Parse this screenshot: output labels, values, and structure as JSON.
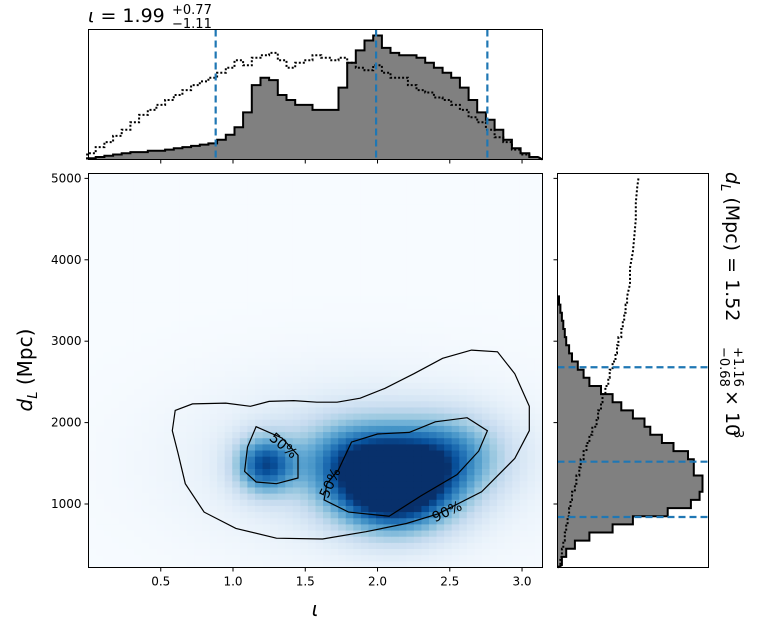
{
  "chart_data": [
    {
      "panel": "top-marginal",
      "type": "step-histogram",
      "title": {
        "symbol": "ι",
        "eq": " = 1.99",
        "sup": "+0.77",
        "sub": "−1.11"
      },
      "x": [
        0.02,
        0.08,
        0.14,
        0.2,
        0.26,
        0.32,
        0.38,
        0.44,
        0.5,
        0.56,
        0.62,
        0.68,
        0.74,
        0.8,
        0.86,
        0.92,
        0.98,
        1.04,
        1.1,
        1.16,
        1.22,
        1.28,
        1.34,
        1.4,
        1.46,
        1.52,
        1.58,
        1.64,
        1.7,
        1.76,
        1.82,
        1.88,
        1.94,
        2.0,
        2.06,
        2.12,
        2.18,
        2.24,
        2.3,
        2.36,
        2.42,
        2.48,
        2.54,
        2.6,
        2.66,
        2.72,
        2.78,
        2.84,
        2.9,
        2.96,
        3.02,
        3.08
      ],
      "series": [
        {
          "values": [
            0.01,
            0.02,
            0.03,
            0.04,
            0.05,
            0.06,
            0.06,
            0.07,
            0.07,
            0.08,
            0.09,
            0.1,
            0.11,
            0.12,
            0.13,
            0.16,
            0.2,
            0.26,
            0.38,
            0.6,
            0.66,
            0.64,
            0.52,
            0.48,
            0.44,
            0.44,
            0.4,
            0.4,
            0.4,
            0.58,
            0.78,
            0.88,
            0.96,
            1.0,
            0.9,
            0.86,
            0.84,
            0.84,
            0.82,
            0.78,
            0.74,
            0.7,
            0.66,
            0.58,
            0.48,
            0.38,
            0.32,
            0.24,
            0.16,
            0.09,
            0.05,
            0.02
          ],
          "fill": "#808080",
          "stroke": "#000000",
          "style": "solid"
        },
        {
          "values": [
            0.05,
            0.1,
            0.14,
            0.19,
            0.24,
            0.3,
            0.36,
            0.4,
            0.44,
            0.48,
            0.52,
            0.56,
            0.6,
            0.63,
            0.66,
            0.7,
            0.74,
            0.8,
            0.76,
            0.82,
            0.84,
            0.86,
            0.8,
            0.74,
            0.78,
            0.8,
            0.84,
            0.82,
            0.8,
            0.82,
            0.78,
            0.74,
            0.72,
            0.76,
            0.7,
            0.66,
            0.66,
            0.6,
            0.56,
            0.54,
            0.5,
            0.48,
            0.44,
            0.4,
            0.34,
            0.3,
            0.24,
            0.18,
            0.14,
            0.08,
            0.04,
            0.02
          ],
          "fill": "none",
          "stroke": "#000000",
          "style": "dotted"
        }
      ],
      "quantile_lines": [
        0.88,
        1.99,
        2.76
      ],
      "quantile_color": "#1f77b4",
      "xlim": [
        0.0,
        3.1416
      ]
    },
    {
      "panel": "joint",
      "type": "heatmap",
      "xlabel": "ι",
      "ylabel": "d_L (Mpc)",
      "xlim": [
        0.0,
        3.1416
      ],
      "ylim": [
        220,
        5060
      ],
      "xticks": [
        0.5,
        1.0,
        1.5,
        2.0,
        2.5,
        3.0
      ],
      "xtick_labels": [
        "0.5",
        "1.0",
        "1.5",
        "2.0",
        "2.5",
        "3.0"
      ],
      "yticks": [
        1000,
        2000,
        3000,
        4000,
        5000
      ],
      "ytick_labels": [
        "1000",
        "2000",
        "3000",
        "4000",
        "5000"
      ],
      "colormap": "Blues",
      "density_peaks": [
        {
          "x": 2.12,
          "y": 1130,
          "amplitude": 1.0
        },
        {
          "x": 1.88,
          "y": 1550,
          "amplitude": 0.6
        },
        {
          "x": 2.45,
          "y": 1600,
          "amplitude": 0.55
        },
        {
          "x": 1.22,
          "y": 1480,
          "amplitude": 0.72
        }
      ],
      "contours": [
        {
          "label": "90%",
          "points": [
            [
              0.6,
              2150
            ],
            [
              0.72,
              2230
            ],
            [
              0.95,
              2240
            ],
            [
              1.12,
              2200
            ],
            [
              1.25,
              2260
            ],
            [
              1.42,
              2270
            ],
            [
              1.58,
              2250
            ],
            [
              1.72,
              2250
            ],
            [
              1.88,
              2300
            ],
            [
              2.05,
              2420
            ],
            [
              2.25,
              2600
            ],
            [
              2.45,
              2790
            ],
            [
              2.65,
              2890
            ],
            [
              2.83,
              2870
            ],
            [
              2.95,
              2600
            ],
            [
              3.05,
              2200
            ],
            [
              3.05,
              1900
            ],
            [
              2.95,
              1560
            ],
            [
              2.72,
              1150
            ],
            [
              2.42,
              880
            ],
            [
              2.2,
              760
            ],
            [
              1.92,
              660
            ],
            [
              1.62,
              570
            ],
            [
              1.3,
              580
            ],
            [
              1.02,
              700
            ],
            [
              0.8,
              900
            ],
            [
              0.67,
              1250
            ],
            [
              0.62,
              1620
            ],
            [
              0.58,
              1900
            ],
            [
              0.6,
              2150
            ]
          ],
          "label_pos": [
            2.48,
            910
          ]
        },
        {
          "label": "50%",
          "points": [
            [
              1.16,
              1950
            ],
            [
              1.34,
              1810
            ],
            [
              1.45,
              1600
            ],
            [
              1.45,
              1320
            ],
            [
              1.3,
              1250
            ],
            [
              1.16,
              1270
            ],
            [
              1.08,
              1400
            ],
            [
              1.1,
              1700
            ],
            [
              1.16,
              1950
            ]
          ],
          "label_pos": [
            1.35,
            1720
          ]
        },
        {
          "label": "50%",
          "points": [
            [
              1.73,
              1420
            ],
            [
              1.82,
              1760
            ],
            [
              2.0,
              1860
            ],
            [
              2.22,
              1880
            ],
            [
              2.4,
              2010
            ],
            [
              2.62,
              2060
            ],
            [
              2.76,
              1900
            ],
            [
              2.7,
              1650
            ],
            [
              2.55,
              1360
            ],
            [
              2.3,
              1100
            ],
            [
              2.08,
              850
            ],
            [
              1.8,
              900
            ],
            [
              1.63,
              1050
            ],
            [
              1.65,
              1250
            ],
            [
              1.73,
              1420
            ]
          ],
          "label_pos": [
            1.67,
            1260
          ]
        }
      ]
    },
    {
      "panel": "right-marginal",
      "type": "step-histogram-horizontal",
      "title": {
        "symbol": "d_L (Mpc)",
        "eq": " = 1.52",
        "sup": "+1.16",
        "sub": "−0.68",
        "scale": "× 10",
        "scale_exp": "3"
      },
      "y": [
        300,
        400,
        500,
        600,
        700,
        800,
        900,
        1000,
        1100,
        1200,
        1300,
        1400,
        1500,
        1600,
        1700,
        1800,
        1900,
        2000,
        2100,
        2200,
        2300,
        2400,
        2500,
        2600,
        2700,
        2800,
        2900,
        3000,
        3100,
        3200,
        3300,
        3400,
        3500
      ],
      "series": [
        {
          "values": [
            0.03,
            0.06,
            0.12,
            0.22,
            0.38,
            0.52,
            0.76,
            0.92,
            0.98,
            1.0,
            1.0,
            0.94,
            0.94,
            0.9,
            0.8,
            0.72,
            0.64,
            0.6,
            0.52,
            0.44,
            0.38,
            0.3,
            0.22,
            0.18,
            0.14,
            0.1,
            0.08,
            0.06,
            0.05,
            0.04,
            0.03,
            0.02,
            0.01
          ],
          "fill": "#808080",
          "stroke": "#000000",
          "style": "solid"
        },
        {
          "values": [
            0.02,
            0.03,
            0.04,
            0.05,
            0.06,
            0.07,
            0.08,
            0.09,
            0.1,
            0.12,
            0.13,
            0.15,
            0.16,
            0.18,
            0.2,
            0.22,
            0.24,
            0.27,
            0.28,
            0.3,
            0.31,
            0.33,
            0.35,
            0.36,
            0.38,
            0.4,
            0.41,
            0.42,
            0.44,
            0.45,
            0.46,
            0.47,
            0.48
          ],
          "fill": "none",
          "stroke": "#000000",
          "style": "dotted"
        }
      ],
      "quantile_lines": [
        840,
        1520,
        2680
      ],
      "quantile_color": "#1f77b4",
      "ylim": [
        220,
        5060
      ]
    }
  ]
}
